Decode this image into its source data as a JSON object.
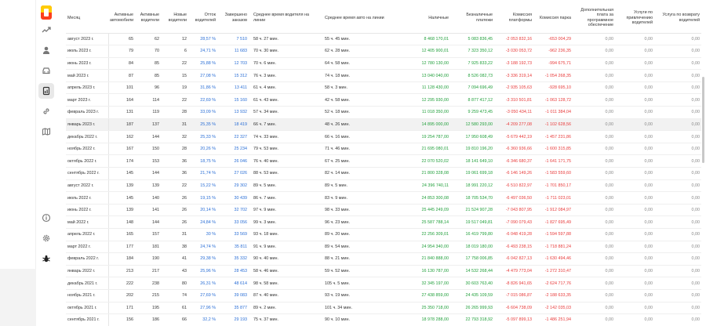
{
  "columns": [
    "Месяц",
    "Активные автомобили",
    "Активные водители",
    "Новые водители",
    "Отток водителей",
    "Завершено заказов",
    "Среднее время водителя на линии",
    "Среднее время авто на линии",
    "Наличные",
    "Безналичные платежи",
    "Комиссия платформы",
    "Комиссия парка",
    "Дополнительная плата за программное обеспечение",
    "Услуги по привлечению водителей",
    "Услуга по возврату водителей"
  ],
  "rows": [
    {
      "month": "август 2023 г.",
      "cars": "65",
      "drivers": "62",
      "new": "12",
      "churn": "28,57 %",
      "orders": "7 510",
      "drv_time": "58 ч. 27 мин.",
      "car_time": "55 ч. 45 мин.",
      "cash": "8 468 170,01",
      "cashless": "5 083 836,45",
      "platform": "-2 053 832,16",
      "park": "-653 004,29",
      "software": "0,00",
      "attract": "0,00",
      "return": "0,00"
    },
    {
      "month": "июль 2023 г.",
      "cars": "79",
      "drivers": "70",
      "new": "6",
      "churn": "24,71 %",
      "orders": "11 683",
      "drv_time": "70 ч. 30 мин.",
      "car_time": "62 ч. 28 мин.",
      "cash": "12 405 900,01",
      "cashless": "7 323 350,12",
      "platform": "-3 030 053,72",
      "park": "-962 236,35",
      "software": "0,00",
      "attract": "0,00",
      "return": "0,00"
    },
    {
      "month": "июнь 2023 г.",
      "cars": "84",
      "drivers": "85",
      "new": "22",
      "churn": "25,88 %",
      "orders": "12 703",
      "drv_time": "70 ч. 6 мин.",
      "car_time": "64 ч. 58 мин.",
      "cash": "12 780 130,00",
      "cashless": "7 925 833,22",
      "platform": "-3 188 192,73",
      "park": "-994 675,71",
      "software": "0,00",
      "attract": "0,00",
      "return": "0,00"
    },
    {
      "month": "май 2023 г.",
      "cars": "87",
      "drivers": "85",
      "new": "15",
      "churn": "27,08 %",
      "orders": "15 312",
      "drv_time": "76 ч. 3 мин.",
      "car_time": "74 ч. 18 мин.",
      "cash": "13 040 040,00",
      "cashless": "8 526 082,73",
      "platform": "-3 336 319,14",
      "park": "-1 054 268,35",
      "software": "0,00",
      "attract": "0,00",
      "return": "0,00"
    },
    {
      "month": "апрель 2023 г.",
      "cars": "101",
      "drivers": "96",
      "new": "19",
      "churn": "31,86 %",
      "orders": "13 411",
      "drv_time": "61 ч. 4 мин.",
      "car_time": "58 ч. 3 мин.",
      "cash": "11 128 430,00",
      "cashless": "7 094 696,49",
      "platform": "-2 935 105,63",
      "park": "-928 695,10",
      "software": "0,00",
      "attract": "0,00",
      "return": "0,00"
    },
    {
      "month": "март 2023 г.",
      "cars": "164",
      "drivers": "114",
      "new": "22",
      "churn": "22,69 %",
      "orders": "15 160",
      "drv_time": "61 ч. 43 мин.",
      "car_time": "42 ч. 58 мин.",
      "cash": "12 295 930,00",
      "cashless": "8 877 417,12",
      "platform": "-3 310 501,81",
      "park": "-1 063 128,72",
      "software": "0,00",
      "attract": "0,00",
      "return": "0,00"
    },
    {
      "month": "февраль 2023 г.",
      "cars": "131",
      "drivers": "119",
      "new": "28",
      "churn": "33,09 %",
      "orders": "13 932",
      "drv_time": "57 ч. 34 мин.",
      "car_time": "52 ч. 18 мин.",
      "cash": "11 018 350,00",
      "cashless": "9 259 473,45",
      "platform": "-3 050 434,11",
      "park": "-1 011 384,04",
      "software": "0,00",
      "attract": "0,00",
      "return": "0,00"
    },
    {
      "month": "январь 2023 г.",
      "cars": "187",
      "drivers": "137",
      "new": "31",
      "churn": "25,35 %",
      "orders": "18 419",
      "drv_time": "66 ч. 7 мин.",
      "car_time": "48 ч. 26 мин.",
      "cash": "14 895 000,00",
      "cashless": "12 580 293,00",
      "platform": "-4 209 277,08",
      "park": "-1 102 628,56",
      "software": "0,00",
      "attract": "0,00",
      "return": "0,00"
    },
    {
      "month": "декабрь 2022 г.",
      "cars": "162",
      "drivers": "144",
      "new": "32",
      "churn": "25,33 %",
      "orders": "22 327",
      "drv_time": "74 ч. 33 мин.",
      "car_time": "66 ч. 16 мин.",
      "cash": "19 254 787,00",
      "cashless": "17 950 608,49",
      "platform": "-5 679 442,19",
      "park": "-1 457 231,86",
      "software": "0,00",
      "attract": "0,00",
      "return": "0,00"
    },
    {
      "month": "ноябрь 2022 г.",
      "cars": "167",
      "drivers": "150",
      "new": "28",
      "churn": "20,26 %",
      "orders": "25 234",
      "drv_time": "79 ч. 53 мин.",
      "car_time": "71 ч. 46 мин.",
      "cash": "21 695 080,01",
      "cashless": "19 810 196,20",
      "platform": "-6 360 936,66",
      "park": "-1 600 315,85",
      "software": "0,00",
      "attract": "0,00",
      "return": "0,00"
    },
    {
      "month": "октябрь 2022 г.",
      "cars": "174",
      "drivers": "153",
      "new": "36",
      "churn": "18,75 %",
      "orders": "26 046",
      "drv_time": "76 ч. 40 мин.",
      "car_time": "67 ч. 25 мин.",
      "cash": "22 070 520,02",
      "cashless": "18 141 649,10",
      "platform": "-6 346 680,37",
      "park": "-1 641 171,75",
      "software": "0,00",
      "attract": "0,00",
      "return": "0,00"
    },
    {
      "month": "сентябрь 2022 г.",
      "cars": "145",
      "drivers": "144",
      "new": "36",
      "churn": "21,74 %",
      "orders": "27 026",
      "drv_time": "88 ч. 53 мин.",
      "car_time": "82 ч. 14 мин.",
      "cash": "21 800 328,08",
      "cashless": "19 061 699,18",
      "platform": "-6 146 149,26",
      "park": "-1 583 559,60",
      "software": "0,00",
      "attract": "0,00",
      "return": "0,00"
    },
    {
      "month": "август 2022 г.",
      "cars": "139",
      "drivers": "139",
      "new": "22",
      "churn": "15,22 %",
      "orders": "29 302",
      "drv_time": "89 ч. 5 мин.",
      "car_time": "89 ч. 5 мин.",
      "cash": "24 396 740,11",
      "cashless": "18 991 220,12",
      "platform": "-6 510 822,97",
      "park": "-1 701 850,17",
      "software": "0,00",
      "attract": "0,00",
      "return": "0,00"
    },
    {
      "month": "июль 2022 г.",
      "cars": "145",
      "drivers": "140",
      "new": "26",
      "churn": "19,15 %",
      "orders": "30 439",
      "drv_time": "86 ч. 7 мин.",
      "car_time": "83 ч. 9 мин.",
      "cash": "24 853 300,08",
      "cashless": "18 705 534,70",
      "platform": "-6 497 036,50",
      "park": "-1 711 023,01",
      "software": "0,00",
      "attract": "0,00",
      "return": "0,00"
    },
    {
      "month": "июнь 2022 г.",
      "cars": "139",
      "drivers": "141",
      "new": "26",
      "churn": "20,14 %",
      "orders": "32 702",
      "drv_time": "97 ч. 9 мин.",
      "car_time": "98 ч. 33 мин.",
      "cash": "25 445 249,09",
      "cashless": "21 524 907,28",
      "platform": "-7 043 807,95",
      "park": "-1 912 084,97",
      "software": "0,00",
      "attract": "0,00",
      "return": "0,00"
    },
    {
      "month": "май 2022 г.",
      "cars": "148",
      "drivers": "144",
      "new": "26",
      "churn": "24,84 %",
      "orders": "33 056",
      "drv_time": "99 ч. 3 мин.",
      "car_time": "96 ч. 23 мин.",
      "cash": "25 587 788,14",
      "cashless": "19 517 049,81",
      "platform": "-7 090 079,43",
      "park": "-1 827 695,49",
      "software": "0,00",
      "attract": "0,00",
      "return": "0,00"
    },
    {
      "month": "апрель 2022 г.",
      "cars": "165",
      "drivers": "157",
      "new": "31",
      "churn": "30 %",
      "orders": "33 569",
      "drv_time": "93 ч. 18 мин.",
      "car_time": "89 ч. 20 мин.",
      "cash": "22 256 309,01",
      "cashless": "16 419 799,80",
      "platform": "-6 048 419,28",
      "park": "-1 594 597,88",
      "software": "0,00",
      "attract": "0,00",
      "return": "0,00"
    },
    {
      "month": "март 2022 г.",
      "cars": "177",
      "drivers": "181",
      "new": "38",
      "churn": "24,74 %",
      "orders": "35 811",
      "drv_time": "91 ч. 9 мин.",
      "car_time": "89 ч. 54 мин.",
      "cash": "24 954 340,00",
      "cashless": "18 019 180,00",
      "platform": "-6 493 238,15",
      "park": "-1 718 881,24",
      "software": "0,00",
      "attract": "0,00",
      "return": "0,00"
    },
    {
      "month": "февраль 2022 г.",
      "cars": "184",
      "drivers": "190",
      "new": "41",
      "churn": "29,38 %",
      "orders": "35 332",
      "drv_time": "90 ч. 40 мин.",
      "car_time": "88 ч. 21 мин.",
      "cash": "21 840 888,00",
      "cashless": "17 758 006,85",
      "platform": "-6 042 827,13",
      "park": "-1 630 494,46",
      "software": "0,00",
      "attract": "0,00",
      "return": "0,00"
    },
    {
      "month": "январь 2022 г.",
      "cars": "213",
      "drivers": "217",
      "new": "43",
      "churn": "25,96 %",
      "orders": "28 453",
      "drv_time": "58 ч. 46 мин.",
      "car_time": "59 ч. 52 мин.",
      "cash": "16 130 787,00",
      "cashless": "14 532 268,44",
      "platform": "-4 479 773,04",
      "park": "-1 272 310,47",
      "software": "0,00",
      "attract": "0,00",
      "return": "0,00"
    },
    {
      "month": "декабрь 2021 г.",
      "cars": "222",
      "drivers": "238",
      "new": "80",
      "churn": "26,31 %",
      "orders": "48 614",
      "drv_time": "98 ч. 58 мин.",
      "car_time": "105 ч. 5 мин.",
      "cash": "32 345 197,00",
      "cashless": "30 603 763,40",
      "platform": "-8 826 941,65",
      "park": "-2 624 717,76",
      "software": "0,00",
      "attract": "0,00",
      "return": "0,00"
    },
    {
      "month": "ноябрь 2021 г.",
      "cars": "202",
      "drivers": "215",
      "new": "74",
      "churn": "27,69 %",
      "orders": "39 083",
      "drv_time": "87 ч. 40 мин.",
      "car_time": "93 ч. 19 мин.",
      "cash": "27 438 859,00",
      "cashless": "24 435 109,59",
      "platform": "-7 015 086,87",
      "park": "-2 188 633,35",
      "software": "0,00",
      "attract": "0,00",
      "return": "0,00"
    },
    {
      "month": "октябрь 2021 г.",
      "cars": "171",
      "drivers": "195",
      "new": "61",
      "churn": "27,96 %",
      "orders": "35 877",
      "drv_time": "89 ч. 2 мин.",
      "car_time": "101 ч. 34 мин.",
      "cash": "25 350 718,00",
      "cashless": "26 265 999,93",
      "platform": "-6 604 738,09",
      "park": "-2 142 035,03",
      "software": "0,00",
      "attract": "0,00",
      "return": "0,00"
    },
    {
      "month": "сентябрь 2021 г.",
      "cars": "156",
      "drivers": "186",
      "new": "66",
      "churn": "32,2 %",
      "orders": "29 193",
      "drv_time": "75 ч. 37 мин.",
      "car_time": "90 ч. 10 мин.",
      "cash": "18 978 288,00",
      "cashless": "22 793 318,92",
      "platform": "-5 097 899,13",
      "park": "-1 486 251,94",
      "software": "0,00",
      "attract": "0,00",
      "return": "0,00"
    }
  ],
  "highlighted_row": 7,
  "nav_icons": [
    "trend-icon",
    "user-icon",
    "car-icon",
    "report-icon",
    "link-icon",
    "map-icon",
    "info-icon",
    "settings-icon",
    "bug-icon"
  ],
  "colors": {
    "positive": "#22a03c",
    "negative": "#e83b3b",
    "link": "#2b6fd6",
    "logo_red": "#fc3f1d",
    "logo_yellow": "#ffcc00"
  }
}
